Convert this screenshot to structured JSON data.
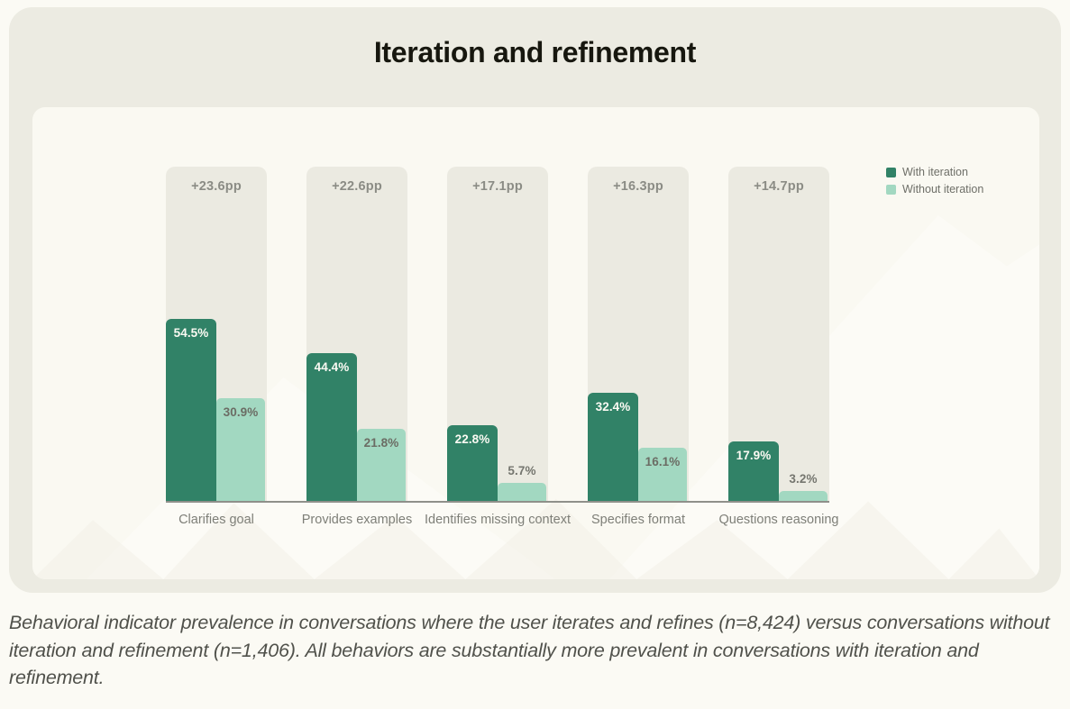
{
  "title": "Iteration and refinement",
  "caption": "Behavioral indicator prevalence in conversations where the user iterates and refines (n=8,424) versus conversations without iteration and refinement (n=1,406). All behaviors are substantially more prevalent in conversations with iteration and refinement.",
  "colors": {
    "with_iteration": "#318267",
    "without_iteration": "#A2D8C1",
    "card_background": "#ECEBE2",
    "panel_background": "#FAF9F2",
    "track_background": "#EBEAE1",
    "page_background": "#FBFAF4",
    "axis_line": "#8F908A",
    "muted_text": "#7E7F78"
  },
  "chart_data": {
    "type": "bar",
    "title": "Iteration and refinement",
    "categories": [
      "Clarifies goal",
      "Provides examples",
      "Identifies missing context",
      "Specifies format",
      "Questions reasoning"
    ],
    "series": [
      {
        "name": "With iteration",
        "values": [
          54.5,
          44.4,
          22.8,
          32.4,
          17.9
        ]
      },
      {
        "name": "Without iteration",
        "values": [
          30.9,
          21.8,
          5.7,
          16.1,
          3.2
        ]
      }
    ],
    "diff_labels": [
      "+23.6pp",
      "+22.6pp",
      "+17.1pp",
      "+16.3pp",
      "+14.7pp"
    ],
    "value_suffix": "%",
    "ylim": [
      0,
      100
    ],
    "grid": false,
    "legend_position": "top-right",
    "xlabel": "",
    "ylabel": ""
  }
}
